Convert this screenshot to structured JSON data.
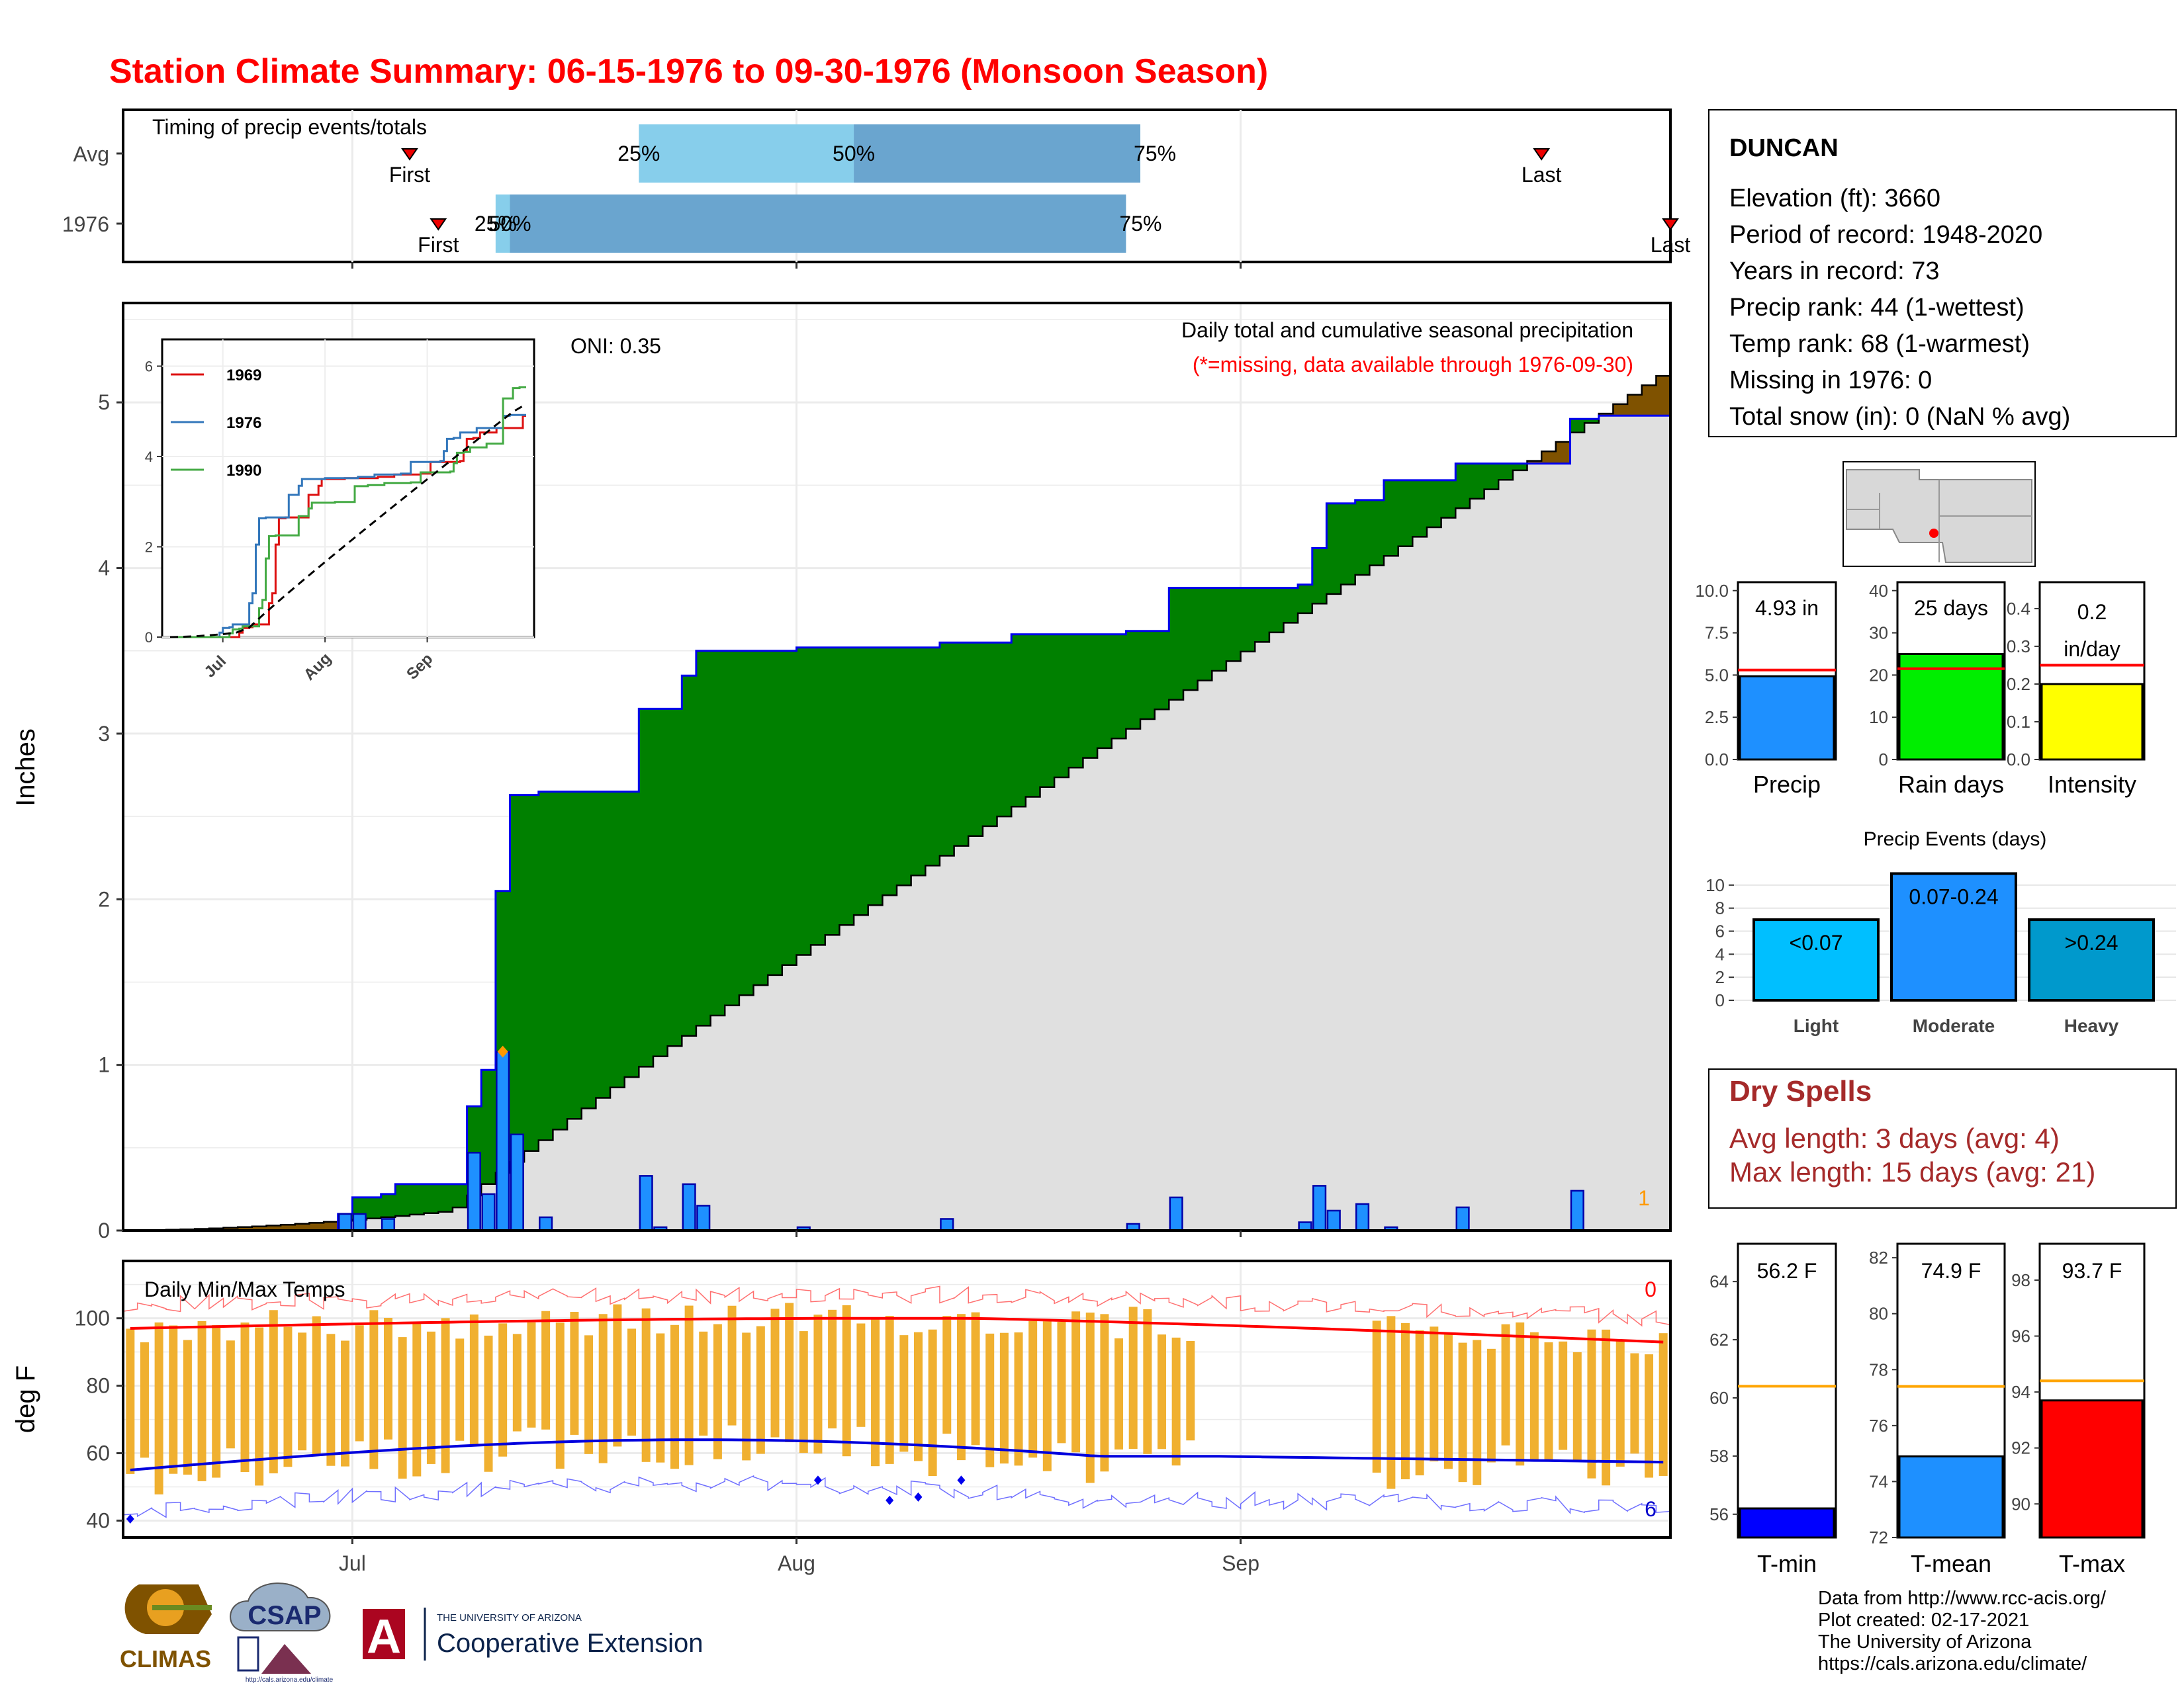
{
  "title": "Station Climate Summary: 06-15-1976 to 09-30-1976 (Monsoon Season)",
  "months": [
    "Jul",
    "Aug",
    "Sep"
  ],
  "colors": {
    "title": "#ff0000",
    "below_avg_fill": "#008000",
    "above_avg_fill": "#7f5200",
    "cumulative_fill": "#e0e0e0",
    "daily_bar": "#1e90ff",
    "tmax_line": "#ff0000",
    "tmin_line": "#0000dd",
    "temp_bar": "#f0b030",
    "q_light": "#87ceeb",
    "q_dark": "#6aa5cf",
    "dry_spells": "#a52a2a"
  },
  "timing": {
    "title": "Timing of precip events/totals",
    "rows": [
      {
        "label": "Avg",
        "first_label": "First",
        "last_label": "Last",
        "first_day": 20,
        "last_day": 99,
        "q25_label": "25%",
        "q50_label": "50%",
        "q75_label": "75%",
        "q25": 36,
        "q50": 51,
        "q75": 71
      },
      {
        "label": "1976",
        "first_label": "First",
        "last_label": "Last",
        "first_day": 22,
        "last_day": 108,
        "q25_label": "25%",
        "q50_label": "50%",
        "q75_label": "75%",
        "q25": 26,
        "q50": 27,
        "q75": 70
      }
    ]
  },
  "main": {
    "oni": "ONI: 0.35",
    "subtitle": "Daily total and cumulative seasonal precipitation",
    "missing_note": "(*=missing, data available through 1976-09-30)",
    "ylabel": "Inches",
    "yticks": [
      "0",
      "1",
      "2",
      "3",
      "4",
      "5"
    ],
    "missing_count": "1"
  },
  "chart_data": {
    "type": "area",
    "title": "Daily total and cumulative seasonal precipitation",
    "ylabel": "Inches",
    "ylim": [
      0,
      5.6
    ],
    "x_start": "1976-06-15",
    "x_end": "1976-09-30",
    "cumulative_1976": [
      {
        "date": "1976-06-15",
        "value": 0.0
      },
      {
        "date": "1976-06-30",
        "value": 0.1
      },
      {
        "date": "1976-07-01",
        "value": 0.2
      },
      {
        "date": "1976-07-03",
        "value": 0.22
      },
      {
        "date": "1976-07-04",
        "value": 0.28
      },
      {
        "date": "1976-07-09",
        "value": 0.75
      },
      {
        "date": "1976-07-10",
        "value": 0.97
      },
      {
        "date": "1976-07-11",
        "value": 2.05
      },
      {
        "date": "1976-07-12",
        "value": 2.63
      },
      {
        "date": "1976-07-14",
        "value": 2.65
      },
      {
        "date": "1976-07-21",
        "value": 3.15
      },
      {
        "date": "1976-07-24",
        "value": 3.35
      },
      {
        "date": "1976-07-25",
        "value": 3.5
      },
      {
        "date": "1976-08-01",
        "value": 3.52
      },
      {
        "date": "1976-08-11",
        "value": 3.55
      },
      {
        "date": "1976-08-16",
        "value": 3.6
      },
      {
        "date": "1976-08-24",
        "value": 3.62
      },
      {
        "date": "1976-08-27",
        "value": 3.88
      },
      {
        "date": "1976-09-05",
        "value": 3.9
      },
      {
        "date": "1976-09-06",
        "value": 4.12
      },
      {
        "date": "1976-09-07",
        "value": 4.39
      },
      {
        "date": "1976-09-09",
        "value": 4.41
      },
      {
        "date": "1976-09-11",
        "value": 4.53
      },
      {
        "date": "1976-09-16",
        "value": 4.63
      },
      {
        "date": "1976-09-24",
        "value": 4.9
      },
      {
        "date": "1976-09-26",
        "value": 4.92
      }
    ],
    "cumulative_avg_end": 5.16,
    "daily_precip": [
      {
        "date": "1976-06-30",
        "value": 0.1
      },
      {
        "date": "1976-07-01",
        "value": 0.1
      },
      {
        "date": "1976-07-03",
        "value": 0.07
      },
      {
        "date": "1976-07-09",
        "value": 0.47
      },
      {
        "date": "1976-07-10",
        "value": 0.22
      },
      {
        "date": "1976-07-11",
        "value": 1.08
      },
      {
        "date": "1976-07-12",
        "value": 0.58
      },
      {
        "date": "1976-07-14",
        "value": 0.08
      },
      {
        "date": "1976-07-21",
        "value": 0.33
      },
      {
        "date": "1976-07-22",
        "value": 0.02
      },
      {
        "date": "1976-07-24",
        "value": 0.28
      },
      {
        "date": "1976-07-25",
        "value": 0.15
      },
      {
        "date": "1976-08-01",
        "value": 0.02
      },
      {
        "date": "1976-08-11",
        "value": 0.07
      },
      {
        "date": "1976-08-24",
        "value": 0.04
      },
      {
        "date": "1976-08-27",
        "value": 0.2
      },
      {
        "date": "1976-09-05",
        "value": 0.05
      },
      {
        "date": "1976-09-06",
        "value": 0.27
      },
      {
        "date": "1976-09-07",
        "value": 0.12
      },
      {
        "date": "1976-09-09",
        "value": 0.16
      },
      {
        "date": "1976-09-11",
        "value": 0.02
      },
      {
        "date": "1976-09-16",
        "value": 0.14
      },
      {
        "date": "1976-09-24",
        "value": 0.24
      }
    ],
    "inset": {
      "type": "line",
      "yticks": [
        "0",
        "2",
        "4",
        "6"
      ],
      "xticks": [
        "Jul",
        "Aug",
        "Sep"
      ],
      "series": [
        {
          "name": "1969",
          "color": "#dd1111"
        },
        {
          "name": "1976",
          "color": "#3377bb"
        },
        {
          "name": "1990",
          "color": "#44aa44"
        }
      ]
    }
  },
  "temps": {
    "title": "Daily Min/Max Temps",
    "ylabel": "deg F",
    "yticks": [
      "40",
      "60",
      "80",
      "100"
    ],
    "ylim": [
      35,
      117
    ],
    "tmax_missing": "0",
    "tmin_missing": "6"
  },
  "info": {
    "station": "DUNCAN",
    "lines": [
      "Elevation (ft): 3660",
      "Period of record: 1948-2020",
      "Years in record: 73",
      "Precip rank: 44 (1-wettest)",
      "Temp rank: 68 (1-warmest)",
      "Missing in 1976: 0",
      "Total snow (in): 0 (NaN % avg)"
    ]
  },
  "summary_bars": [
    {
      "label": "Precip",
      "value_label": "4.93 in",
      "value": 4.93,
      "avg": 5.3,
      "ymax": 10.5,
      "yticks": [
        "0.0",
        "2.5",
        "5.0",
        "7.5",
        "10.0"
      ],
      "ytick_vals": [
        0,
        2.5,
        5,
        7.5,
        10
      ],
      "color": "#1e90ff"
    },
    {
      "label": "Rain days",
      "value_label": "25 days",
      "value": 25,
      "avg": 21.5,
      "ymax": 42,
      "yticks": [
        "0",
        "10",
        "20",
        "30",
        "40"
      ],
      "ytick_vals": [
        0,
        10,
        20,
        30,
        40
      ],
      "color": "#00ee00"
    },
    {
      "label": "Intensity",
      "value_label": "0.2",
      "value_label2": "in/day",
      "value": 0.2,
      "avg": 0.25,
      "ymax": 0.47,
      "yticks": [
        "0.0",
        "0.1",
        "0.2",
        "0.3",
        "0.4"
      ],
      "ytick_vals": [
        0,
        0.1,
        0.2,
        0.3,
        0.4
      ],
      "color": "#ffff00"
    }
  ],
  "events": {
    "title": "Precip Events (days)",
    "yticks": [
      "0",
      "2",
      "4",
      "6",
      "8",
      "10"
    ],
    "bars": [
      {
        "label": "Light",
        "value_label": "<0.07",
        "value": 7,
        "color": "#00bfff"
      },
      {
        "label": "Moderate",
        "value_label": "0.07-0.24",
        "value": 11,
        "color": "#1e90ff"
      },
      {
        "label": "Heavy",
        "value_label": ">0.24",
        "value": 7,
        "color": "#0099cc"
      }
    ]
  },
  "dry_spells": {
    "title": "Dry Spells",
    "avg_line": "Avg length: 3 days (avg: 4)",
    "max_line": "Max length: 15 days (avg: 21)"
  },
  "temp_bars": [
    {
      "label": "T-min",
      "value_label": "56.2 F",
      "value": 56.2,
      "avg": 60.4,
      "ymin": 55.2,
      "ymax": 65.3,
      "yticks": [
        "56",
        "58",
        "60",
        "62",
        "64"
      ],
      "ytick_vals": [
        56,
        58,
        60,
        62,
        64
      ],
      "color": "#0000ff"
    },
    {
      "label": "T-mean",
      "value_label": "74.9 F",
      "value": 74.9,
      "avg": 77.4,
      "ymin": 72,
      "ymax": 82.5,
      "yticks": [
        "72",
        "74",
        "76",
        "78",
        "80",
        "82"
      ],
      "ytick_vals": [
        72,
        74,
        76,
        78,
        80,
        82
      ],
      "color": "#1e90ff"
    },
    {
      "label": "T-max",
      "value_label": "93.7 F",
      "value": 93.7,
      "avg": 94.4,
      "ymin": 88.8,
      "ymax": 99.3,
      "yticks": [
        "90",
        "92",
        "94",
        "96",
        "98"
      ],
      "ytick_vals": [
        90,
        92,
        94,
        96,
        98
      ],
      "color": "#ff0000"
    }
  ],
  "credits": [
    "Data from http://www.rcc-acis.org/",
    "Plot created: 02-17-2021",
    "The University of Arizona",
    "https://cals.arizona.edu/climate/"
  ],
  "logos": {
    "climas": "CLIMAS",
    "csap": "CSAP",
    "csap_url": "http://cals.arizona.edu/climate",
    "ua_small": "THE UNIVERSITY OF ARIZONA",
    "ua_big": "Cooperative Extension",
    "ua_letter": "A"
  }
}
